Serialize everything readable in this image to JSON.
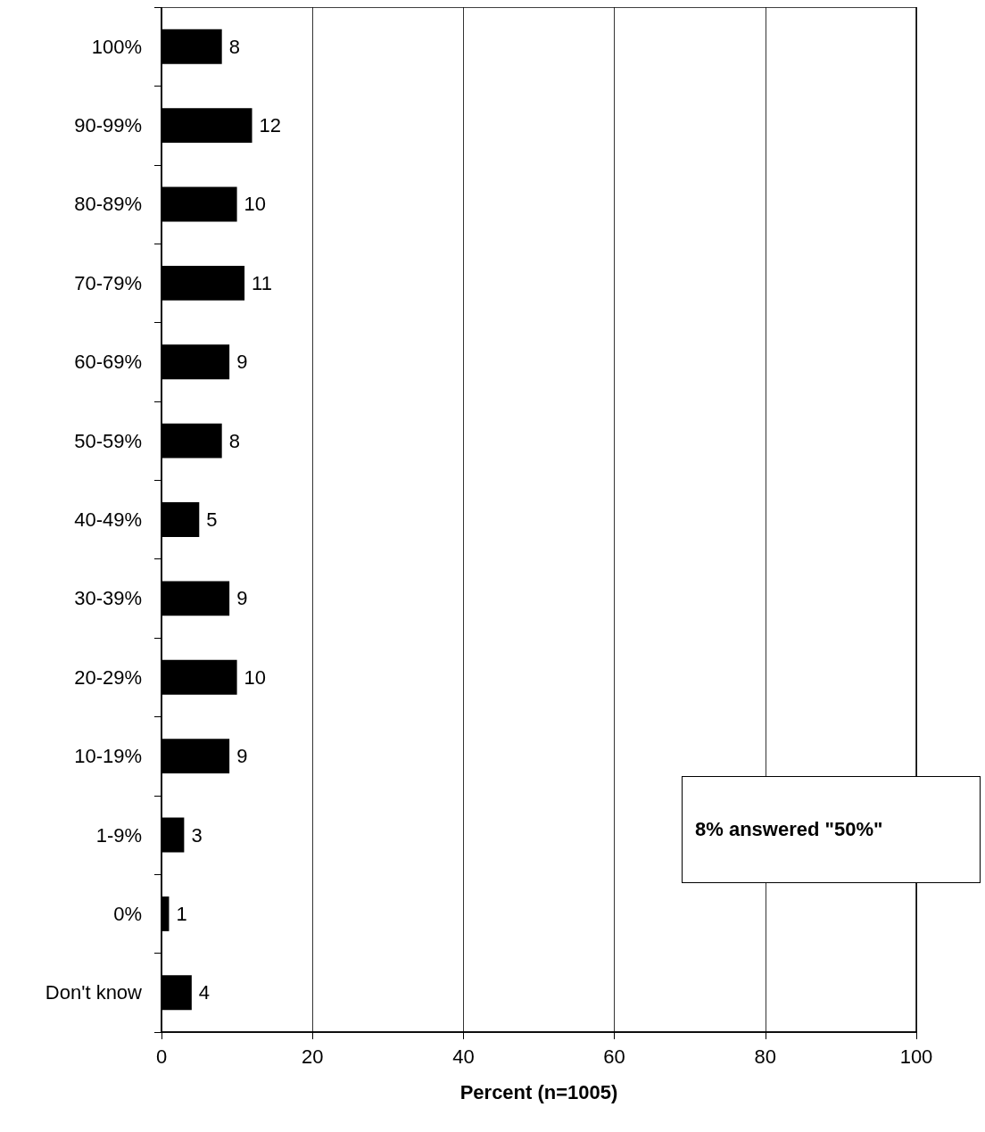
{
  "chart_data": {
    "type": "bar",
    "orientation": "horizontal",
    "xlabel": "Percent (n=1005)",
    "categories": [
      "100%",
      "90-99%",
      "80-89%",
      "70-79%",
      "60-69%",
      "50-59%",
      "40-49%",
      "30-39%",
      "20-29%",
      "10-19%",
      "1-9%",
      "0%",
      "Don't know"
    ],
    "values": [
      8,
      12,
      10,
      11,
      9,
      8,
      5,
      9,
      10,
      9,
      3,
      1,
      4
    ],
    "color": "#000000",
    "xlim": [
      0,
      100
    ],
    "xticks": [
      0,
      20,
      40,
      60,
      80,
      100
    ],
    "grid": "x",
    "data_labels": true,
    "annotations": [
      "8% answered \"50%\""
    ]
  }
}
